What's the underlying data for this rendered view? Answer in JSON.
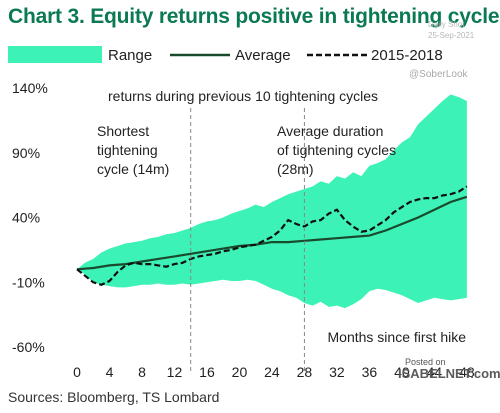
{
  "title": "Chart 3. Equity returns positive in tightening cycles",
  "watermark": {
    "lines": [
      "Daily Shot",
      "25-Sep-2021"
    ],
    "handle": "@SoberLook"
  },
  "source": "Sources: Bloomberg, TS Lombard",
  "posted": {
    "label": "Posted on",
    "site": "ISABELNET.com"
  },
  "colors": {
    "title": "#0b7a52",
    "range": "#3df2b6",
    "average": "#1a4a2e",
    "recent": "#111111",
    "divider": "#888888"
  },
  "chart_data": {
    "type": "line",
    "title": "Chart 3. Equity returns positive in tightening cycles",
    "xlabel": "Months since first hike",
    "ylabel": "",
    "xlim": [
      0,
      49
    ],
    "ylim": [
      -60,
      145
    ],
    "x_ticks": [
      0,
      4,
      8,
      12,
      16,
      20,
      24,
      28,
      32,
      36,
      40,
      44,
      48
    ],
    "y_ticks": [
      140,
      90,
      40,
      -10,
      -60
    ],
    "y_tick_labels": [
      "140%",
      "90%",
      "40%",
      "-10%",
      "-60%"
    ],
    "grid": false,
    "legend": {
      "position": "top",
      "entries": [
        "Range",
        "Average",
        "2015-2018"
      ]
    },
    "annotations": [
      {
        "text": "returns during previous 10 tightening cycles"
      },
      {
        "text": "Shortest tightening cycle (14m)",
        "x": 14
      },
      {
        "text": "Average duration of tightening cycles (28m)",
        "x": 28
      }
    ],
    "series": [
      {
        "name": "Range",
        "kind": "band",
        "x": [
          0,
          1,
          2,
          3,
          4,
          5,
          6,
          7,
          8,
          9,
          10,
          11,
          12,
          13,
          14,
          15,
          16,
          17,
          18,
          19,
          20,
          21,
          22,
          23,
          24,
          25,
          26,
          27,
          28,
          29,
          30,
          31,
          32,
          33,
          34,
          35,
          36,
          37,
          38,
          39,
          40,
          41,
          42,
          43,
          44,
          45,
          46,
          47,
          48
        ],
        "upper": [
          0,
          5,
          8,
          13,
          16,
          18,
          20,
          21,
          22,
          24,
          25,
          27,
          28,
          30,
          32,
          35,
          37,
          38,
          40,
          43,
          45,
          47,
          50,
          48,
          52,
          55,
          58,
          60,
          62,
          64,
          68,
          66,
          72,
          70,
          75,
          72,
          80,
          82,
          85,
          92,
          98,
          102,
          112,
          118,
          124,
          130,
          135,
          133,
          130
        ],
        "lower": [
          0,
          -4,
          -10,
          -12,
          -13,
          -14,
          -14,
          -13,
          -12,
          -12,
          -11,
          -12,
          -12,
          -11,
          -12,
          -11,
          -10,
          -9,
          -8,
          -9,
          -9,
          -8,
          -9,
          -12,
          -15,
          -17,
          -20,
          -22,
          -26,
          -28,
          -25,
          -29,
          -28,
          -30,
          -27,
          -23,
          -17,
          -15,
          -16,
          -18,
          -20,
          -23,
          -26,
          -24,
          -22,
          -23,
          -24,
          -23,
          -22
        ]
      },
      {
        "name": "Average",
        "kind": "line",
        "x": [
          0,
          2,
          4,
          6,
          8,
          10,
          12,
          14,
          16,
          18,
          20,
          22,
          24,
          26,
          28,
          30,
          32,
          34,
          36,
          38,
          40,
          42,
          44,
          46,
          48
        ],
        "values": [
          0,
          1,
          3,
          4,
          6,
          8,
          10,
          12,
          14,
          16,
          18,
          19,
          21,
          21,
          22,
          23,
          24,
          25,
          26,
          30,
          35,
          40,
          46,
          52,
          56
        ]
      },
      {
        "name": "2015-2018",
        "kind": "dashed",
        "x": [
          0,
          1,
          2,
          3,
          4,
          5,
          6,
          7,
          8,
          9,
          10,
          11,
          12,
          13,
          14,
          15,
          16,
          17,
          18,
          19,
          20,
          21,
          22,
          23,
          24,
          25,
          26,
          27,
          28,
          29,
          30,
          31,
          32,
          33,
          34,
          35,
          36,
          37,
          38,
          39,
          40,
          41,
          42,
          43,
          44,
          45,
          46,
          47,
          48
        ],
        "values": [
          0,
          -5,
          -10,
          -12,
          -9,
          -2,
          3,
          5,
          4,
          4,
          3,
          2,
          4,
          5,
          8,
          10,
          11,
          12,
          14,
          15,
          17,
          18,
          19,
          22,
          25,
          30,
          38,
          35,
          33,
          37,
          38,
          43,
          46,
          38,
          33,
          29,
          30,
          34,
          38,
          44,
          48,
          52,
          54,
          55,
          55,
          57,
          58,
          60,
          64
        ]
      }
    ]
  }
}
